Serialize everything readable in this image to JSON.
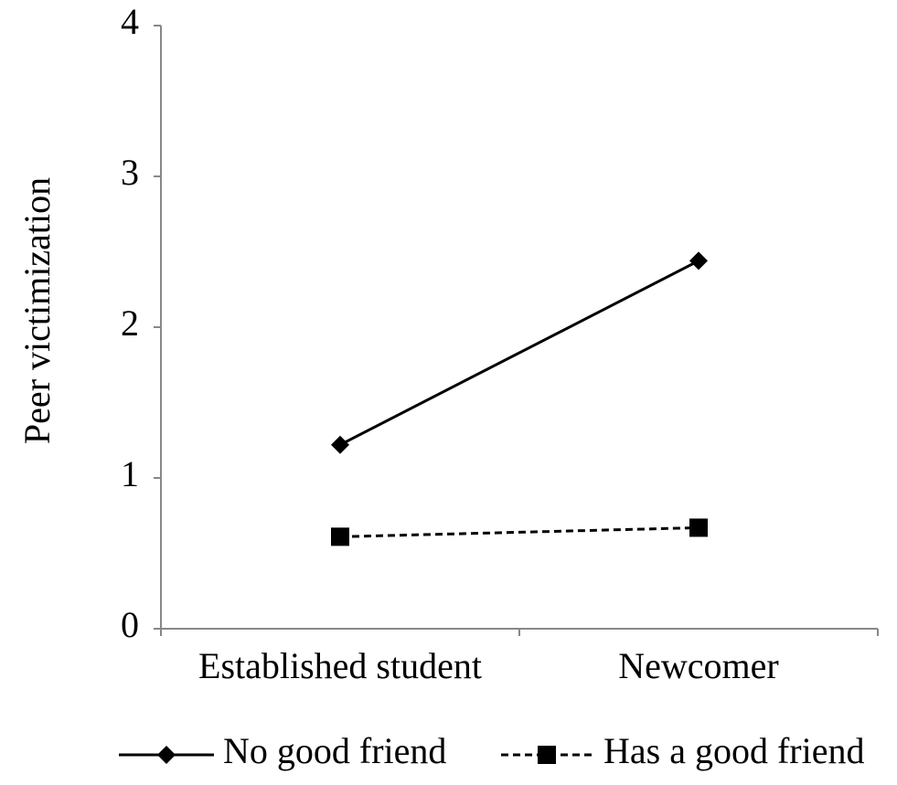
{
  "chart_data": {
    "type": "line",
    "title": "",
    "xlabel": "",
    "ylabel": "Peer victimization",
    "categories": [
      "Established student",
      "Newcomer"
    ],
    "ylim": [
      0,
      4
    ],
    "yticks": [
      "0",
      "1",
      "2",
      "3",
      "4"
    ],
    "grid": false,
    "legend_position": "bottom",
    "series": [
      {
        "name": "No good friend",
        "values": [
          1.22,
          2.44
        ],
        "marker": "diamond",
        "line": "solid",
        "color": "#000000"
      },
      {
        "name": "Has a good friend",
        "values": [
          0.61,
          0.67
        ],
        "marker": "square",
        "line": "dashed",
        "color": "#000000"
      }
    ]
  }
}
